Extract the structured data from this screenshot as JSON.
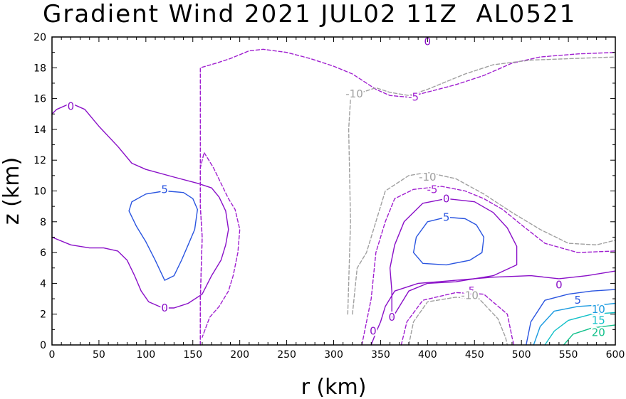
{
  "chart_data": {
    "type": "contour",
    "title": "Gradient Wind 2021 JUL02 11Z  AL0521",
    "xlabel": "r (km)",
    "ylabel": "z (km)",
    "xlim": [
      0,
      600
    ],
    "ylim": [
      0,
      20
    ],
    "xticks": [
      0,
      50,
      100,
      150,
      200,
      250,
      300,
      350,
      400,
      450,
      500,
      550,
      600
    ],
    "yticks": [
      0,
      2,
      4,
      6,
      8,
      10,
      12,
      14,
      16,
      18,
      20
    ],
    "grid": false,
    "legend": "none",
    "level_colors": {
      "-10": "#a0a0a0",
      "-5": "#a020d0",
      "0": "#8a10c8",
      "5": "#2a55e0",
      "10": "#1a9ae0",
      "15": "#10c0c8",
      "20": "#10c08a"
    },
    "contours": [
      {
        "level": 0,
        "dashed": false,
        "points": [
          [
            0,
            15
          ],
          [
            5,
            15.3
          ],
          [
            20,
            15.7
          ],
          [
            35,
            15.3
          ],
          [
            50,
            14.2
          ],
          [
            70,
            12.9
          ],
          [
            85,
            11.8
          ],
          [
            100,
            11.4
          ],
          [
            130,
            10.9
          ],
          [
            155,
            10.5
          ],
          [
            170,
            10.2
          ],
          [
            178,
            9.6
          ],
          [
            185,
            8.7
          ],
          [
            188,
            7.5
          ],
          [
            185,
            6.5
          ],
          [
            180,
            5.5
          ],
          [
            170,
            4.5
          ],
          [
            160,
            3.3
          ],
          [
            145,
            2.7
          ],
          [
            130,
            2.4
          ],
          [
            118,
            2.4
          ],
          [
            103,
            2.8
          ],
          [
            95,
            3.5
          ],
          [
            88,
            4.5
          ],
          [
            80,
            5.5
          ],
          [
            70,
            6.1
          ],
          [
            55,
            6.3
          ],
          [
            40,
            6.3
          ],
          [
            20,
            6.5
          ],
          [
            0,
            7
          ]
        ]
      },
      {
        "level": -5,
        "dashed": true,
        "points": [
          [
            158,
            0
          ],
          [
            158,
            3
          ],
          [
            160,
            7
          ],
          [
            158,
            9
          ],
          [
            158,
            11
          ],
          [
            158,
            15
          ],
          [
            158,
            18
          ],
          [
            175,
            18.3
          ],
          [
            190,
            18.6
          ],
          [
            210,
            19.1
          ],
          [
            225,
            19.2
          ],
          [
            250,
            19
          ],
          [
            275,
            18.6
          ],
          [
            300,
            18.1
          ],
          [
            320,
            17.6
          ],
          [
            330,
            17.2
          ],
          [
            345,
            16.6
          ],
          [
            360,
            16.2
          ],
          [
            378,
            16.1
          ],
          [
            392,
            16.3
          ],
          [
            405,
            16.5
          ],
          [
            430,
            16.9
          ],
          [
            460,
            17.5
          ],
          [
            490,
            18.3
          ],
          [
            520,
            18.7
          ],
          [
            560,
            18.9
          ],
          [
            600,
            19
          ]
        ]
      },
      {
        "level": -5,
        "dashed": true,
        "points": [
          [
            158,
            0
          ],
          [
            158,
            3
          ],
          [
            160,
            7
          ],
          [
            158,
            9
          ],
          [
            158,
            11.5
          ],
          [
            162,
            12.5
          ],
          [
            172,
            11.5
          ],
          [
            180,
            10.5
          ],
          [
            188,
            9.5
          ],
          [
            195,
            8.8
          ],
          [
            200,
            7.5
          ],
          [
            198,
            6
          ],
          [
            193,
            4.5
          ],
          [
            188,
            3.5
          ],
          [
            178,
            2.5
          ],
          [
            168,
            1.8
          ],
          [
            160,
            0.5
          ]
        ]
      },
      {
        "level": -10,
        "dashed": true,
        "points": [
          [
            315,
            2
          ],
          [
            318,
            8
          ],
          [
            316,
            14
          ],
          [
            318,
            16
          ],
          [
            330,
            16.4
          ],
          [
            345,
            16.7
          ],
          [
            360,
            16.4
          ],
          [
            380,
            16.2
          ],
          [
            400,
            16.6
          ],
          [
            420,
            17.1
          ],
          [
            440,
            17.6
          ],
          [
            470,
            18.2
          ],
          [
            510,
            18.5
          ],
          [
            600,
            18.7
          ]
        ]
      },
      {
        "level": 5,
        "dashed": false,
        "points": [
          [
            120,
            4.2
          ],
          [
            110,
            5.5
          ],
          [
            100,
            6.7
          ],
          [
            90,
            7.7
          ],
          [
            82,
            8.7
          ],
          [
            85,
            9.3
          ],
          [
            100,
            9.8
          ],
          [
            120,
            10
          ],
          [
            140,
            9.9
          ],
          [
            150,
            9.5
          ],
          [
            155,
            8.8
          ],
          [
            152,
            7.5
          ],
          [
            145,
            6.5
          ],
          [
            138,
            5.5
          ],
          [
            130,
            4.5
          ],
          [
            120,
            4.2
          ]
        ]
      },
      {
        "level": 0,
        "dashed": false,
        "points": [
          [
            362,
            1.7
          ],
          [
            362,
            3.5
          ],
          [
            360,
            5
          ],
          [
            365,
            6.5
          ],
          [
            375,
            8
          ],
          [
            395,
            9.2
          ],
          [
            420,
            9.5
          ],
          [
            450,
            9.3
          ],
          [
            470,
            8.6
          ],
          [
            485,
            7.6
          ],
          [
            495,
            6.4
          ],
          [
            495,
            5.2
          ],
          [
            470,
            4.5
          ],
          [
            430,
            4.1
          ],
          [
            400,
            4
          ],
          [
            380,
            3.5
          ],
          [
            370,
            2.5
          ],
          [
            362,
            1.7
          ]
        ]
      },
      {
        "level": 5,
        "dashed": false,
        "points": [
          [
            420,
            8.3
          ],
          [
            400,
            8
          ],
          [
            388,
            7
          ],
          [
            385,
            6
          ],
          [
            395,
            5.3
          ],
          [
            420,
            5.2
          ],
          [
            445,
            5.5
          ],
          [
            458,
            6
          ],
          [
            460,
            7
          ],
          [
            452,
            7.8
          ],
          [
            440,
            8.2
          ],
          [
            420,
            8.3
          ]
        ]
      },
      {
        "level": -5,
        "dashed": true,
        "points": [
          [
            330,
            0
          ],
          [
            340,
            3
          ],
          [
            345,
            6
          ],
          [
            355,
            8
          ],
          [
            365,
            9.5
          ],
          [
            385,
            10.1
          ],
          [
            415,
            10.3
          ],
          [
            440,
            10
          ],
          [
            460,
            9.5
          ],
          [
            480,
            8.8
          ],
          [
            500,
            7.8
          ],
          [
            525,
            6.6
          ],
          [
            560,
            6
          ],
          [
            600,
            6.1
          ]
        ]
      },
      {
        "level": -10,
        "dashed": true,
        "points": [
          [
            320,
            2
          ],
          [
            325,
            5
          ],
          [
            335,
            6
          ],
          [
            345,
            8
          ],
          [
            355,
            10
          ],
          [
            380,
            11
          ],
          [
            400,
            11.2
          ],
          [
            430,
            10.8
          ],
          [
            460,
            9.8
          ],
          [
            490,
            8.6
          ],
          [
            520,
            7.5
          ],
          [
            550,
            6.6
          ],
          [
            580,
            6.5
          ],
          [
            600,
            6.8
          ]
        ]
      },
      {
        "level": 0,
        "dashed": false,
        "points": [
          [
            340,
            0
          ],
          [
            345,
            0.8
          ],
          [
            350,
            1.5
          ],
          [
            355,
            2.5
          ],
          [
            365,
            3.5
          ],
          [
            390,
            4
          ],
          [
            430,
            4.2
          ],
          [
            470,
            4.4
          ],
          [
            510,
            4.5
          ],
          [
            540,
            4.3
          ],
          [
            570,
            4.5
          ],
          [
            600,
            4.8
          ]
        ]
      },
      {
        "level": -5,
        "dashed": true,
        "points": [
          [
            372,
            0
          ],
          [
            378,
            1.5
          ],
          [
            395,
            2.9
          ],
          [
            430,
            3.4
          ],
          [
            460,
            3.3
          ],
          [
            485,
            2
          ],
          [
            490,
            0.5
          ],
          [
            492,
            0
          ]
        ]
      },
      {
        "level": -10,
        "dashed": true,
        "points": [
          [
            380,
            0
          ],
          [
            385,
            1.5
          ],
          [
            400,
            2.8
          ],
          [
            430,
            3.1
          ],
          [
            455,
            3
          ],
          [
            475,
            1.7
          ],
          [
            483,
            0.5
          ],
          [
            485,
            0
          ]
        ]
      },
      {
        "level": 5,
        "dashed": false,
        "points": [
          [
            505,
            0
          ],
          [
            510,
            1.5
          ],
          [
            525,
            2.9
          ],
          [
            550,
            3.3
          ],
          [
            575,
            3.5
          ],
          [
            600,
            3.6
          ]
        ]
      },
      {
        "level": 10,
        "dashed": false,
        "points": [
          [
            513,
            0
          ],
          [
            520,
            1.2
          ],
          [
            535,
            2.2
          ],
          [
            560,
            2.5
          ],
          [
            585,
            2.6
          ],
          [
            600,
            2.7
          ]
        ]
      },
      {
        "level": 15,
        "dashed": false,
        "points": [
          [
            525,
            0
          ],
          [
            535,
            0.9
          ],
          [
            550,
            1.6
          ],
          [
            575,
            2
          ],
          [
            600,
            2.1
          ]
        ]
      },
      {
        "level": 20,
        "dashed": false,
        "points": [
          [
            545,
            0
          ],
          [
            555,
            0.7
          ],
          [
            575,
            1.1
          ],
          [
            600,
            1.3
          ]
        ]
      }
    ],
    "contour_labels": [
      {
        "text": "0",
        "level": 0,
        "x": 20,
        "y": 15.5
      },
      {
        "text": "5",
        "level": 5,
        "x": 120,
        "y": 10.1
      },
      {
        "text": "0",
        "level": 0,
        "x": 120,
        "y": 2.4
      },
      {
        "text": "0",
        "level": 0,
        "x": 400,
        "y": 19.7
      },
      {
        "text": "-5",
        "level": -5,
        "x": 385,
        "y": 16.1
      },
      {
        "text": "-10",
        "level": -10,
        "x": 322,
        "y": 16.3
      },
      {
        "text": "-10",
        "level": -10,
        "x": 400,
        "y": 10.9
      },
      {
        "text": "-5",
        "level": -5,
        "x": 405,
        "y": 10.1
      },
      {
        "text": "0",
        "level": 0,
        "x": 420,
        "y": 9.5
      },
      {
        "text": "5",
        "level": 5,
        "x": 420,
        "y": 8.3
      },
      {
        "text": "-5",
        "level": -5,
        "x": 445,
        "y": 3.5
      },
      {
        "text": "-10",
        "level": -10,
        "x": 445,
        "y": 3.2
      },
      {
        "text": "0",
        "level": 0,
        "x": 362,
        "y": 1.8
      },
      {
        "text": "0",
        "level": 0,
        "x": 342,
        "y": 0.9
      },
      {
        "text": "0",
        "level": 0,
        "x": 540,
        "y": 3.9
      },
      {
        "text": "5",
        "level": 5,
        "x": 560,
        "y": 2.9
      },
      {
        "text": "10",
        "level": 10,
        "x": 582,
        "y": 2.3
      },
      {
        "text": "15",
        "level": 15,
        "x": 582,
        "y": 1.6
      },
      {
        "text": "20",
        "level": 20,
        "x": 582,
        "y": 0.8
      }
    ]
  }
}
